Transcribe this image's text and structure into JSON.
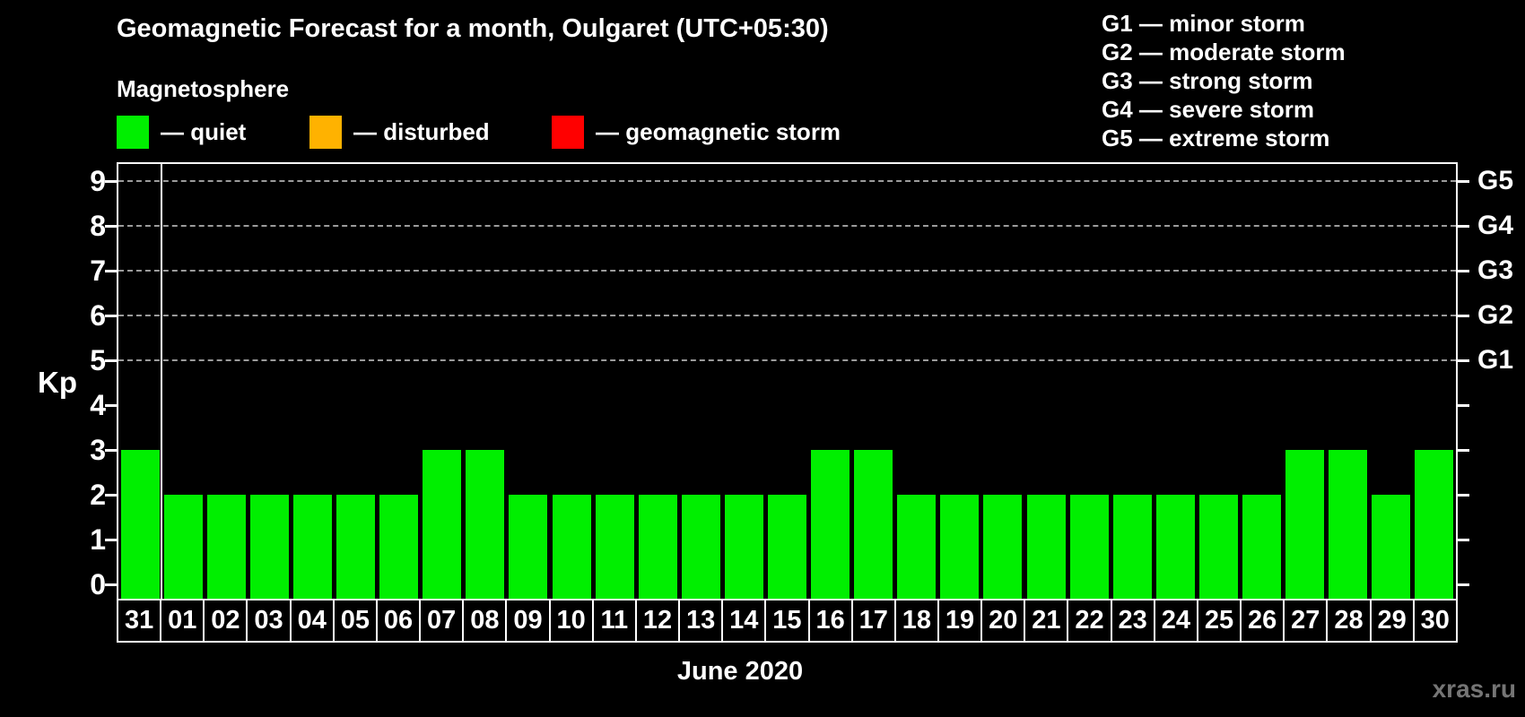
{
  "title": "Geomagnetic Forecast for a month, Oulgaret (UTC+05:30)",
  "legend": {
    "heading": "Magnetosphere",
    "items": [
      {
        "name": "quiet",
        "label": "— quiet",
        "color": "#00ef00"
      },
      {
        "name": "disturbed",
        "label": "— disturbed",
        "color": "#ffb200"
      },
      {
        "name": "storm",
        "label": "— geomagnetic storm",
        "color": "#ff0000"
      }
    ]
  },
  "g_scale_legend": [
    "G1 — minor storm",
    "G2 — moderate storm",
    "G3 — strong storm",
    "G4 — severe storm",
    "G5 — extreme storm"
  ],
  "watermark": "xras.ru",
  "colors": {
    "background": "#000000",
    "axis": "#ffffff",
    "grid": "#9b9b9b",
    "bar": "#00ef00",
    "watermark": "#757575"
  },
  "chart_data": {
    "type": "bar",
    "title": "Geomagnetic Forecast for a month, Oulgaret (UTC+05:30)",
    "xlabel": "June 2020",
    "ylabel": "Kp",
    "ylim": [
      0,
      9
    ],
    "y_ticks": [
      0,
      1,
      2,
      3,
      4,
      5,
      6,
      7,
      8,
      9
    ],
    "grid": "dashed horizontal lines at Kp 5-9 (G1-G5), none below 5",
    "legend_position": "top-left swatches; G-scale text top-right",
    "categories": [
      "31",
      "01",
      "02",
      "03",
      "04",
      "05",
      "06",
      "07",
      "08",
      "09",
      "10",
      "11",
      "12",
      "13",
      "14",
      "15",
      "16",
      "17",
      "18",
      "19",
      "20",
      "21",
      "22",
      "23",
      "24",
      "25",
      "26",
      "27",
      "28",
      "29",
      "30"
    ],
    "values": [
      3,
      2,
      2,
      2,
      2,
      2,
      2,
      3,
      3,
      2,
      2,
      2,
      2,
      2,
      2,
      2,
      3,
      3,
      2,
      2,
      2,
      2,
      2,
      2,
      2,
      2,
      2,
      3,
      3,
      2,
      3
    ],
    "bar_color": "#00ef00",
    "grid_levels": [
      {
        "kp": 5,
        "label": "G1"
      },
      {
        "kp": 6,
        "label": "G2"
      },
      {
        "kp": 7,
        "label": "G3"
      },
      {
        "kp": 8,
        "label": "G4"
      },
      {
        "kp": 9,
        "label": "G5"
      }
    ],
    "month_separator_after_index": 0
  }
}
